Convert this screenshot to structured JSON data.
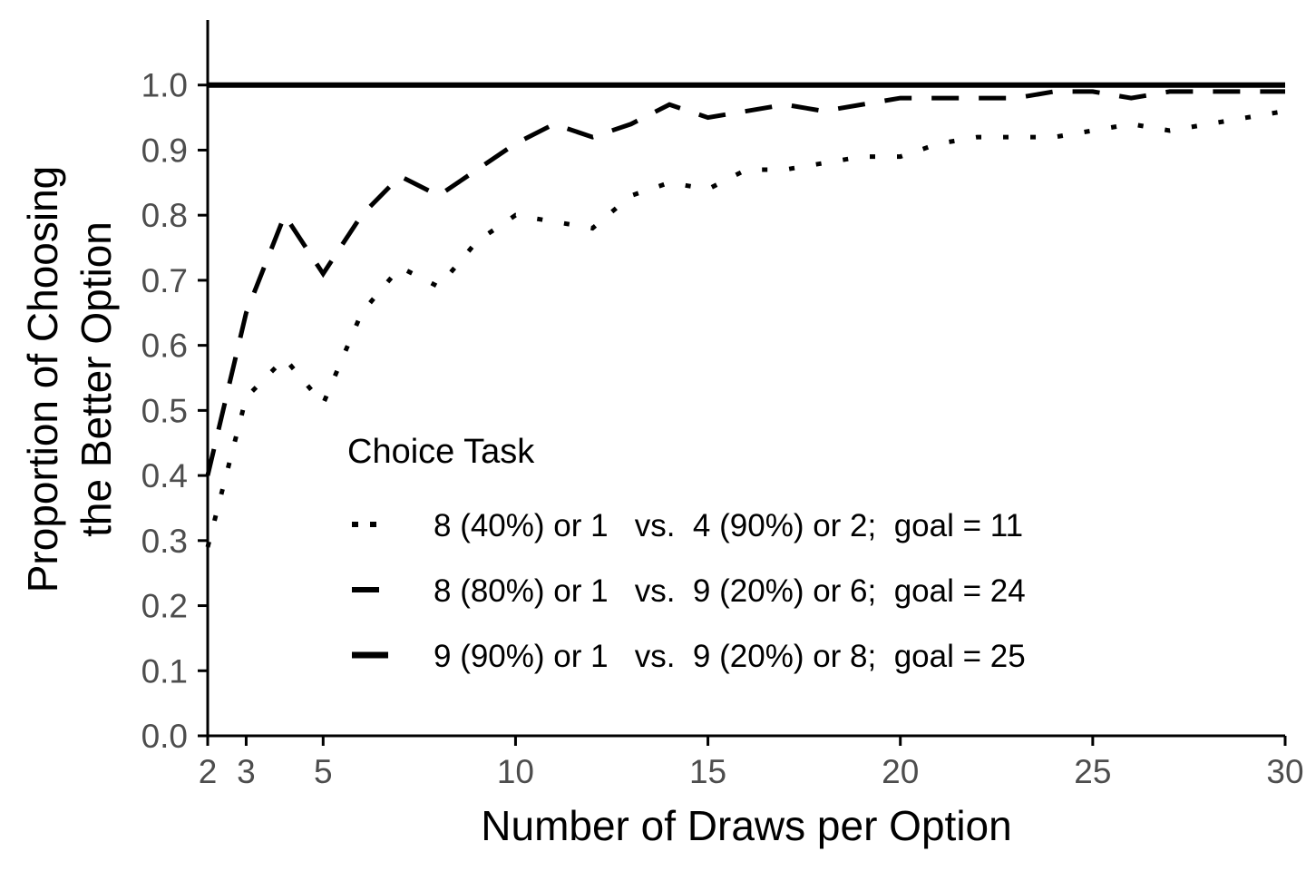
{
  "chart_data": {
    "type": "line",
    "title": "",
    "xlabel": "Number of Draws per Option",
    "ylabel_lines": [
      "Proportion of Choosing",
      "the Better Option"
    ],
    "xlim": [
      2,
      30
    ],
    "ylim": [
      0,
      1.1
    ],
    "x_ticks": [
      2,
      3,
      5,
      10,
      15,
      20,
      25,
      30
    ],
    "y_ticks": [
      0.0,
      0.1,
      0.2,
      0.3,
      0.4,
      0.5,
      0.6,
      0.7,
      0.8,
      0.9,
      1.0
    ],
    "y_tick_labels": [
      "0.0",
      "0.1",
      "0.2",
      "0.3",
      "0.4",
      "0.5",
      "0.6",
      "0.7",
      "0.8",
      "0.9",
      "1.0"
    ],
    "grid": false,
    "legend": {
      "title": "Choice Task",
      "placement": "inside-lower-center"
    },
    "x": [
      2,
      3,
      4,
      5,
      6,
      7,
      8,
      9,
      10,
      11,
      12,
      13,
      14,
      15,
      16,
      17,
      18,
      19,
      20,
      21,
      22,
      23,
      24,
      25,
      26,
      27,
      28,
      29,
      30
    ],
    "series": [
      {
        "name": "8 (40%) or 1   vs.  4 (90%) or 2;  goal = 11",
        "linestyle": "dotted",
        "color": "#000000",
        "values": [
          0.29,
          0.52,
          0.58,
          0.51,
          0.65,
          0.72,
          0.69,
          0.76,
          0.8,
          0.79,
          0.78,
          0.83,
          0.85,
          0.84,
          0.87,
          0.87,
          0.88,
          0.89,
          0.89,
          0.91,
          0.92,
          0.92,
          0.92,
          0.93,
          0.94,
          0.93,
          0.94,
          0.95,
          0.96
        ]
      },
      {
        "name": "8 (80%) or 1   vs.  9 (20%) or 6;  goal = 24",
        "linestyle": "dashed",
        "color": "#000000",
        "values": [
          0.4,
          0.65,
          0.8,
          0.71,
          0.8,
          0.86,
          0.83,
          0.87,
          0.91,
          0.94,
          0.92,
          0.94,
          0.97,
          0.95,
          0.96,
          0.97,
          0.96,
          0.97,
          0.98,
          0.98,
          0.98,
          0.98,
          0.99,
          0.99,
          0.98,
          0.99,
          0.99,
          0.99,
          0.99
        ]
      },
      {
        "name": "9 (90%) or 1   vs.  9 (20%) or 8;  goal = 25",
        "linestyle": "solid",
        "color": "#000000",
        "values": [
          1.0,
          1.0,
          1.0,
          1.0,
          1.0,
          1.0,
          1.0,
          1.0,
          1.0,
          1.0,
          1.0,
          1.0,
          1.0,
          1.0,
          1.0,
          1.0,
          1.0,
          1.0,
          1.0,
          1.0,
          1.0,
          1.0,
          1.0,
          1.0,
          1.0,
          1.0,
          1.0,
          1.0,
          1.0
        ]
      }
    ]
  }
}
